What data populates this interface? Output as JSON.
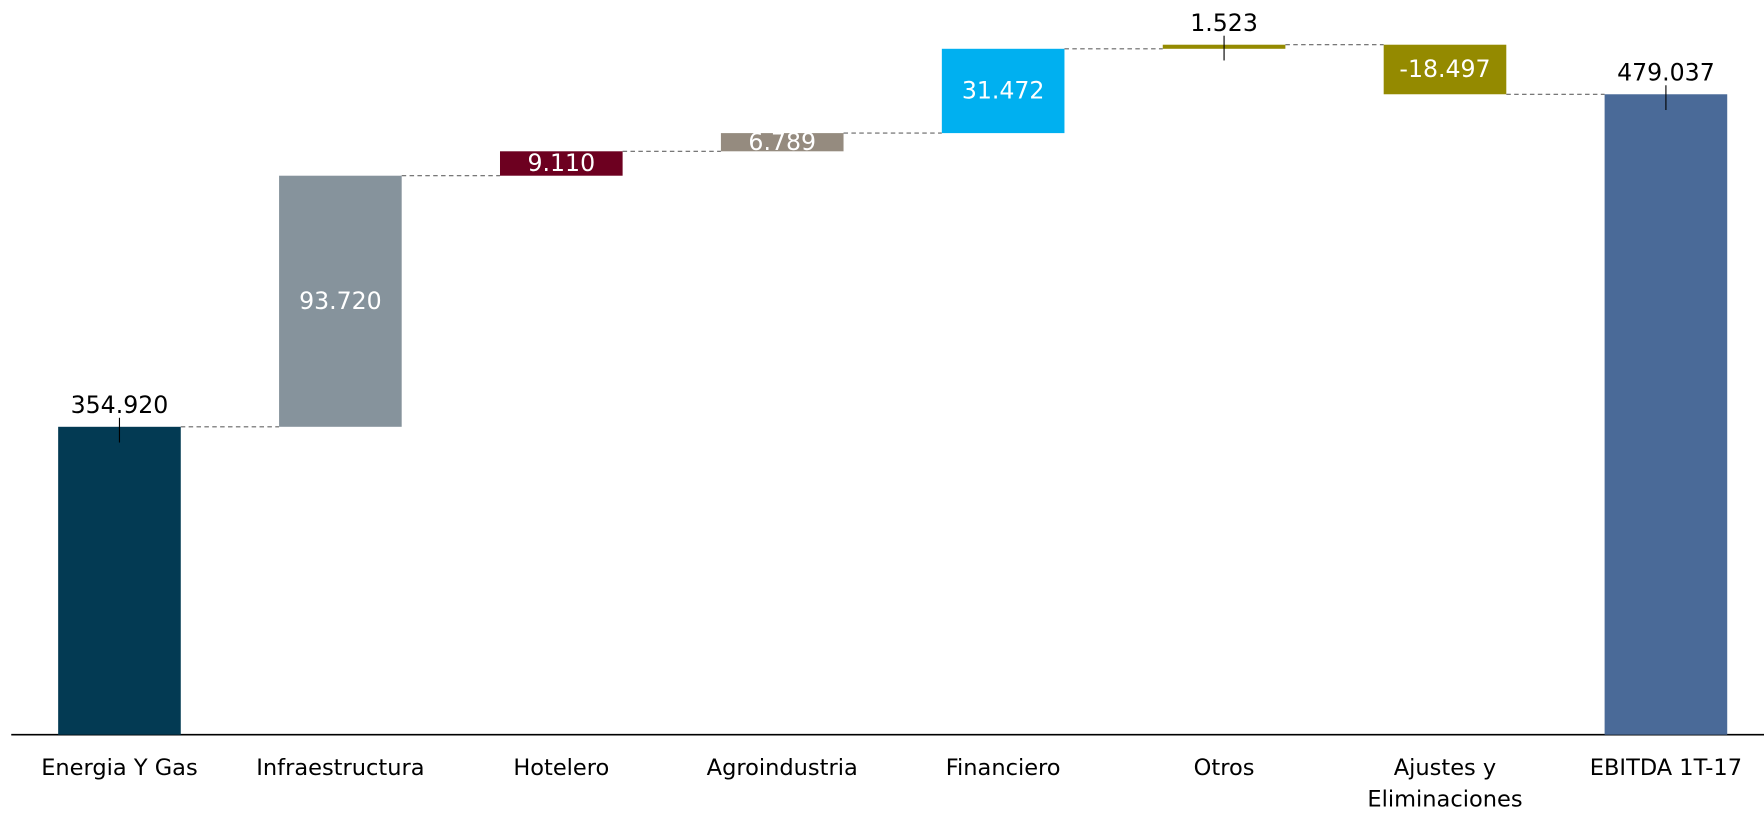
{
  "chart_data": {
    "type": "waterfall",
    "categories": [
      "Energia Y Gas",
      "Infraestructura",
      "Hotelero",
      "Agroindustria",
      "Financiero",
      "Otros",
      "Ajustes y Eliminaciones",
      "EBITDA 1T-17"
    ],
    "values": [
      354920,
      93720,
      9110,
      6789,
      31472,
      1523,
      -18497,
      479037
    ],
    "value_labels": [
      "354.920",
      "93.720",
      "9.110",
      "6.789",
      "31.472",
      "1.523",
      "-18.497",
      "479.037"
    ],
    "total": [
      true,
      false,
      false,
      false,
      false,
      false,
      false,
      true
    ],
    "colors": [
      "#033a53",
      "#86939c",
      "#6d0020",
      "#958b7f",
      "#00b0f0",
      "#948a00",
      "#948a00",
      "#4a6a98"
    ],
    "ylim": [
      240000,
      510000
    ]
  }
}
